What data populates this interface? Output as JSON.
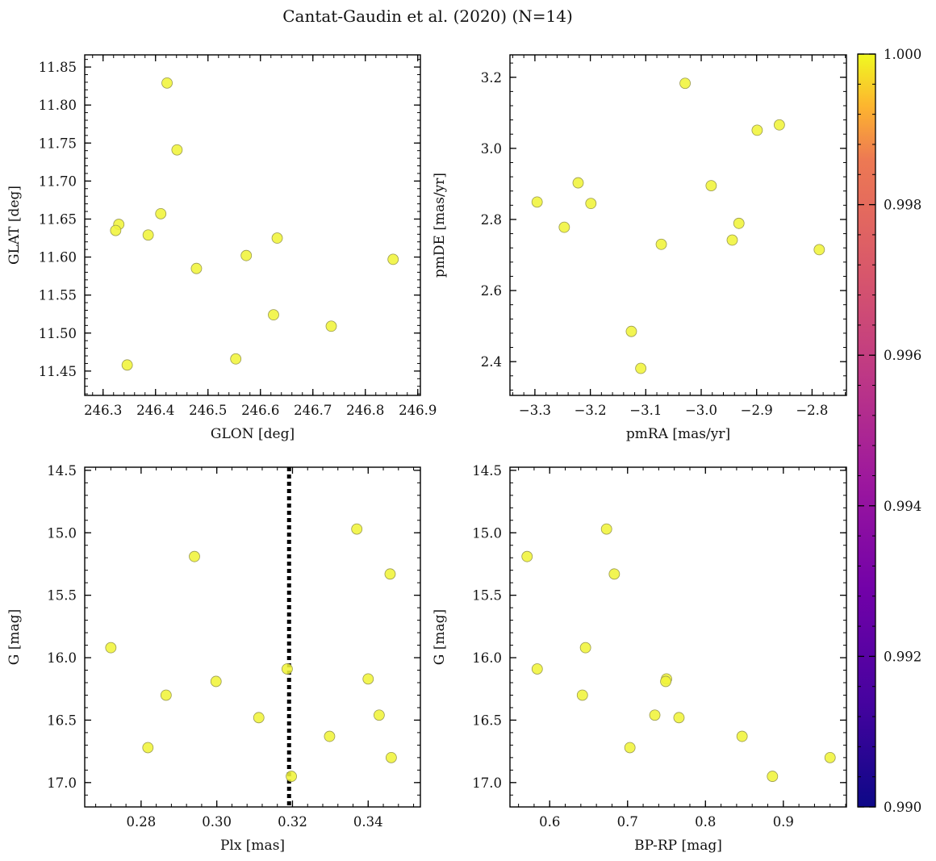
{
  "figure": {
    "title": "Cantat-Gaudin et al. (2020) (N=14)"
  },
  "colors": {
    "point_fill": "#f0f43a",
    "point_edge": "#9a9a50",
    "axis": "#000000",
    "vline": "#000000"
  },
  "colorbar": {
    "range": [
      0.99,
      1.0
    ],
    "ticks": [
      0.99,
      0.992,
      0.994,
      0.996,
      0.998,
      1.0
    ],
    "tick_labels": [
      "0.990",
      "0.992",
      "0.994",
      "0.996",
      "0.998",
      "1.000"
    ],
    "colormap": "plasma"
  },
  "chart_data": [
    {
      "type": "scatter",
      "xlabel": "GLON [deg]",
      "ylabel": "GLAT [deg]",
      "xlim": [
        246.265,
        246.905
      ],
      "ylim": [
        11.418,
        11.866
      ],
      "xticks": [
        246.3,
        246.4,
        246.5,
        246.6,
        246.7,
        246.8,
        246.9
      ],
      "xtick_labels": [
        "246.3",
        "246.4",
        "246.5",
        "246.6",
        "246.7",
        "246.8",
        "246.9"
      ],
      "yticks": [
        11.45,
        11.5,
        11.55,
        11.6,
        11.65,
        11.7,
        11.75,
        11.8,
        11.85
      ],
      "ytick_labels": [
        "11.45",
        "11.50",
        "11.55",
        "11.60",
        "11.65",
        "11.70",
        "11.75",
        "11.80",
        "11.85"
      ],
      "invert_y": false,
      "points": [
        {
          "x": 246.422,
          "y": 11.829
        },
        {
          "x": 246.441,
          "y": 11.741
        },
        {
          "x": 246.33,
          "y": 11.643
        },
        {
          "x": 246.324,
          "y": 11.635
        },
        {
          "x": 246.41,
          "y": 11.657
        },
        {
          "x": 246.386,
          "y": 11.629
        },
        {
          "x": 246.478,
          "y": 11.585
        },
        {
          "x": 246.573,
          "y": 11.602
        },
        {
          "x": 246.632,
          "y": 11.625
        },
        {
          "x": 246.853,
          "y": 11.597
        },
        {
          "x": 246.625,
          "y": 11.524
        },
        {
          "x": 246.735,
          "y": 11.509
        },
        {
          "x": 246.553,
          "y": 11.466
        },
        {
          "x": 246.346,
          "y": 11.458
        }
      ]
    },
    {
      "type": "scatter",
      "xlabel": "pmRA [mas/yr]",
      "ylabel": "pmDE [mas/yr]",
      "xlim": [
        -3.345,
        -2.738
      ],
      "ylim": [
        2.305,
        3.263
      ],
      "xticks": [
        -3.3,
        -3.2,
        -3.1,
        -3.0,
        -2.9,
        -2.8
      ],
      "xtick_labels": [
        "−3.3",
        "−3.2",
        "−3.1",
        "−3.0",
        "−2.9",
        "−2.8"
      ],
      "yticks": [
        2.4,
        2.6,
        2.8,
        3.0,
        3.2
      ],
      "ytick_labels": [
        "2.4",
        "2.6",
        "2.8",
        "3.0",
        "3.2"
      ],
      "invert_y": false,
      "points": [
        {
          "x": -3.029,
          "y": 3.183
        },
        {
          "x": -2.899,
          "y": 3.051
        },
        {
          "x": -2.859,
          "y": 3.066
        },
        {
          "x": -3.296,
          "y": 2.849
        },
        {
          "x": -3.222,
          "y": 2.903
        },
        {
          "x": -3.199,
          "y": 2.845
        },
        {
          "x": -3.247,
          "y": 2.778
        },
        {
          "x": -2.982,
          "y": 2.895
        },
        {
          "x": -2.932,
          "y": 2.789
        },
        {
          "x": -2.944,
          "y": 2.742
        },
        {
          "x": -3.072,
          "y": 2.73
        },
        {
          "x": -2.787,
          "y": 2.715
        },
        {
          "x": -3.126,
          "y": 2.485
        },
        {
          "x": -3.109,
          "y": 2.381
        }
      ]
    },
    {
      "type": "scatter",
      "xlabel": "Plx [mas]",
      "ylabel": "G [mag]",
      "xlim": [
        0.2651,
        0.3538
      ],
      "ylim": [
        17.195,
        14.475
      ],
      "xticks": [
        0.28,
        0.3,
        0.32,
        0.34
      ],
      "xtick_labels": [
        "0.28",
        "0.30",
        "0.32",
        "0.34"
      ],
      "yticks": [
        14.5,
        15.0,
        15.5,
        16.0,
        16.5,
        17.0
      ],
      "ytick_labels": [
        "14.5",
        "15.0",
        "15.5",
        "16.0",
        "16.5",
        "17.0"
      ],
      "invert_y": true,
      "vline": {
        "x": 0.3191,
        "style": "dotted"
      },
      "points": [
        {
          "x": 0.272,
          "y": 15.92
        },
        {
          "x": 0.2941,
          "y": 15.19
        },
        {
          "x": 0.2866,
          "y": 16.3
        },
        {
          "x": 0.2998,
          "y": 16.19
        },
        {
          "x": 0.2818,
          "y": 16.72
        },
        {
          "x": 0.3111,
          "y": 16.48
        },
        {
          "x": 0.3186,
          "y": 16.09
        },
        {
          "x": 0.3197,
          "y": 16.95
        },
        {
          "x": 0.337,
          "y": 14.97
        },
        {
          "x": 0.3458,
          "y": 15.33
        },
        {
          "x": 0.34,
          "y": 16.17
        },
        {
          "x": 0.3429,
          "y": 16.46
        },
        {
          "x": 0.3298,
          "y": 16.63
        },
        {
          "x": 0.3461,
          "y": 16.8
        }
      ]
    },
    {
      "type": "scatter",
      "xlabel": "BP-RP [mag]",
      "ylabel": "G [mag]",
      "xlim": [
        0.549,
        0.981
      ],
      "ylim": [
        17.195,
        14.475
      ],
      "xticks": [
        0.6,
        0.7,
        0.8,
        0.9
      ],
      "xtick_labels": [
        "0.6",
        "0.7",
        "0.8",
        "0.9"
      ],
      "yticks": [
        14.5,
        15.0,
        15.5,
        16.0,
        16.5,
        17.0
      ],
      "ytick_labels": [
        "14.5",
        "15.0",
        "15.5",
        "16.0",
        "16.5",
        "17.0"
      ],
      "invert_y": true,
      "points": [
        {
          "x": 0.673,
          "y": 14.97
        },
        {
          "x": 0.571,
          "y": 15.19
        },
        {
          "x": 0.683,
          "y": 15.33
        },
        {
          "x": 0.646,
          "y": 15.92
        },
        {
          "x": 0.584,
          "y": 16.09
        },
        {
          "x": 0.75,
          "y": 16.17
        },
        {
          "x": 0.749,
          "y": 16.19
        },
        {
          "x": 0.642,
          "y": 16.3
        },
        {
          "x": 0.735,
          "y": 16.46
        },
        {
          "x": 0.766,
          "y": 16.48
        },
        {
          "x": 0.847,
          "y": 16.63
        },
        {
          "x": 0.703,
          "y": 16.72
        },
        {
          "x": 0.96,
          "y": 16.8
        },
        {
          "x": 0.886,
          "y": 16.95
        }
      ]
    }
  ]
}
